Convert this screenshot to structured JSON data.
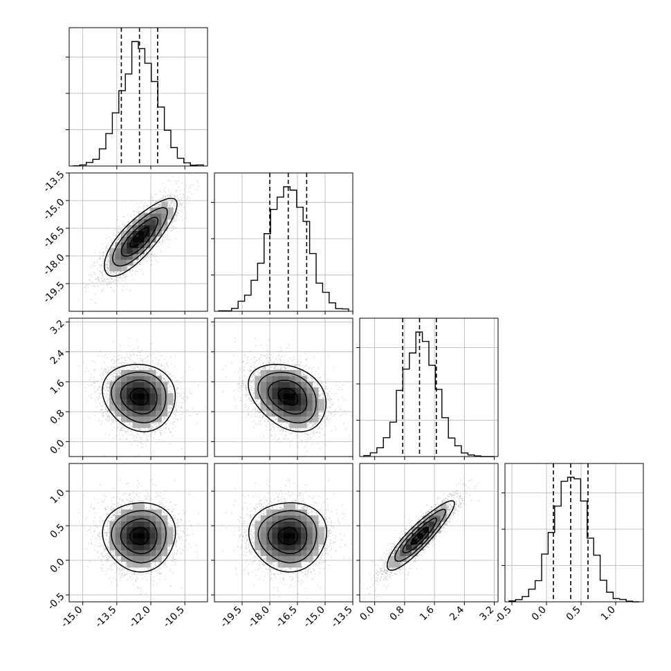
{
  "chart_data": {
    "type": "corner",
    "parameters": 4,
    "grid": true,
    "quantiles": [
      0.16,
      0.5,
      0.84
    ],
    "colors": {
      "axes": "#000000",
      "grid": "#b0b0b0",
      "points": "#8c8c8c",
      "contour": "#000000"
    },
    "params": [
      {
        "range": [
          -15.6,
          -9.5
        ],
        "ticks": [
          "-15.0",
          "-13.5",
          "-12.0",
          "-10.5"
        ],
        "ticks_y": [],
        "mean": -12.5,
        "sd": 0.8,
        "quantile_values": [
          -13.3,
          -12.5,
          -11.7
        ]
      },
      {
        "range": [
          -21.0,
          -13.5
        ],
        "ticks": [
          "-19.5",
          "-18.0",
          "-16.5",
          "-15.0",
          "-13.5"
        ],
        "ticks_y": [
          "-13.5",
          "-15.0",
          "-16.5",
          "-18.0",
          "-19.5"
        ],
        "mean": -17.0,
        "sd": 1.05,
        "quantile_values": [
          -18.0,
          -17.0,
          -16.0
        ]
      },
      {
        "range": [
          -0.4,
          3.3
        ],
        "ticks": [
          "0.0",
          "0.8",
          "1.6",
          "2.4",
          "3.2"
        ],
        "ticks_y": [
          "3.2",
          "2.4",
          "1.6",
          "0.8",
          "0.0"
        ],
        "mean": 1.2,
        "sd": 0.45,
        "quantile_values": [
          0.75,
          1.2,
          1.65
        ]
      },
      {
        "range": [
          -0.6,
          1.4
        ],
        "ticks": [
          "-0.5",
          "0.0",
          "0.5",
          "1.0"
        ],
        "ticks_y": [
          "1.0",
          "0.5",
          "0.0",
          "-0.5"
        ],
        "mean": 0.35,
        "sd": 0.25,
        "quantile_values": [
          0.1,
          0.35,
          0.6
        ]
      }
    ],
    "correlations": {
      "1-0": 0.8,
      "2-0": -0.1,
      "2-1": -0.3,
      "3-0": 0.0,
      "3-1": 0.0,
      "3-2": 0.9
    },
    "histogram": {
      "bins": 20,
      "yticks": 4
    },
    "contour_levels_sigma": [
      0.5,
      1.0,
      1.5,
      2.0
    ]
  }
}
